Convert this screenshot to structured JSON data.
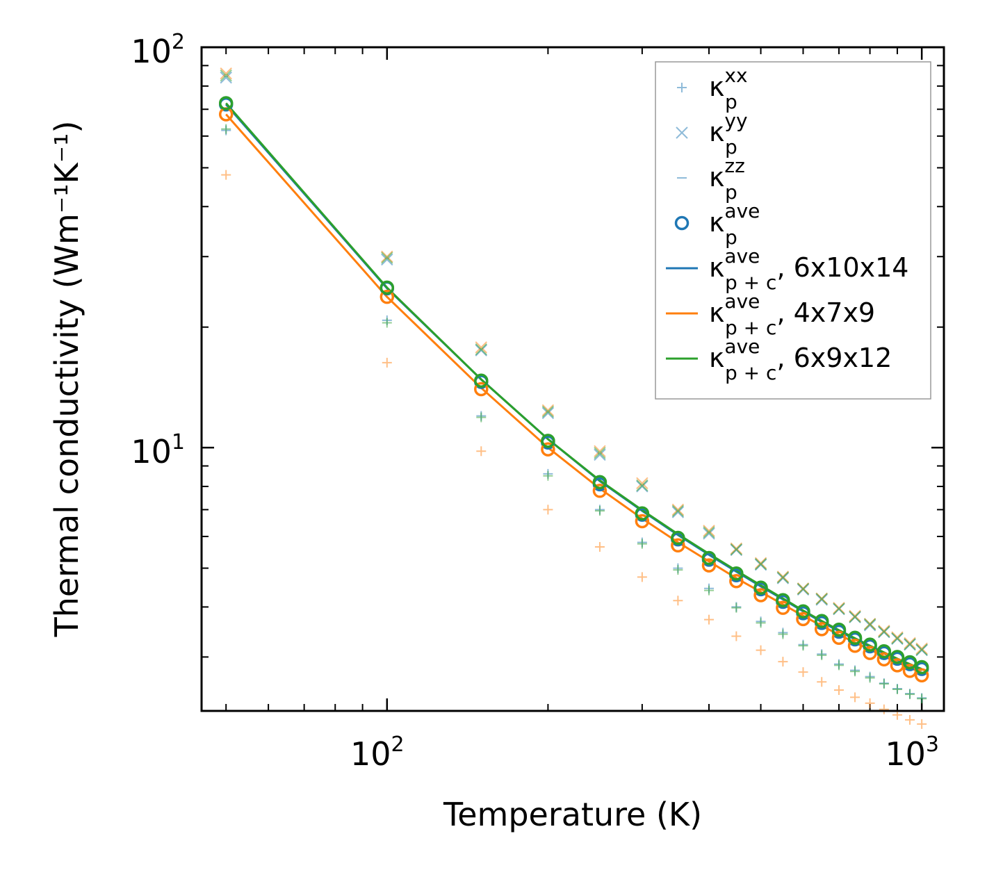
{
  "chart_data": {
    "type": "scatter",
    "xscale": "log",
    "yscale": "log",
    "xlim": [
      45,
      1100
    ],
    "ylim": [
      2.2,
      100
    ],
    "xlabel": "Temperature (K)",
    "ylabel": "Thermal conductivity (Wm⁻¹K⁻¹)",
    "x_ticks": [
      {
        "value": 100,
        "base": "10",
        "exp": "2"
      },
      {
        "value": 1000,
        "base": "10",
        "exp": "3"
      }
    ],
    "y_ticks": [
      {
        "value": 10,
        "base": "10",
        "exp": "1"
      },
      {
        "value": 100,
        "base": "10",
        "exp": "2"
      }
    ],
    "x": [
      50,
      100,
      150,
      200,
      250,
      300,
      350,
      400,
      450,
      500,
      550,
      600,
      650,
      700,
      750,
      800,
      850,
      900,
      950,
      1000
    ],
    "legend_position": "top-right",
    "legend": [
      {
        "marker": "+",
        "color": "#1f77b4",
        "label": "κ",
        "sub": "p",
        "sup": "xx",
        "suffix": ""
      },
      {
        "marker": "x",
        "color": "#1f77b4",
        "label": "κ",
        "sub": "p",
        "sup": "yy",
        "suffix": ""
      },
      {
        "marker": "_",
        "color": "#1f77b4",
        "label": "κ",
        "sub": "p",
        "sup": "zz",
        "suffix": ""
      },
      {
        "marker": "o",
        "color": "#1f77b4",
        "label": "κ",
        "sub": "p",
        "sup": "ave",
        "suffix": ""
      },
      {
        "marker": "line",
        "color": "#1f77b4",
        "label": "κ",
        "sub": "p + c",
        "sup": "ave",
        "suffix": ", 6x10x14"
      },
      {
        "marker": "line",
        "color": "#ff7f0e",
        "label": "κ",
        "sub": "p + c",
        "sup": "ave",
        "suffix": ", 4x7x9"
      },
      {
        "marker": "line",
        "color": "#2ca02c",
        "label": "κ",
        "sub": "p + c",
        "sup": "ave",
        "suffix": ", 6x9x12"
      }
    ],
    "marker_series": [
      {
        "name": "kappa_p_xx 6x10x14",
        "marker": "+",
        "color": "#1f77b4",
        "values": [
          62.0,
          20.8,
          12.0,
          8.6,
          7.0,
          5.8,
          5.0,
          4.45,
          4.0,
          3.68,
          3.45,
          3.22,
          3.05,
          2.88,
          2.78,
          2.68,
          2.58,
          2.5,
          2.43,
          2.37
        ]
      },
      {
        "name": "kappa_p_yy 6x10x14",
        "marker": "x",
        "color": "#1f77b4",
        "values": [
          84.0,
          29.5,
          17.5,
          12.2,
          9.6,
          8.0,
          6.9,
          6.1,
          5.55,
          5.1,
          4.72,
          4.42,
          4.17,
          3.95,
          3.77,
          3.6,
          3.46,
          3.33,
          3.22,
          3.12
        ]
      },
      {
        "name": "kappa_p_xx 4x7x9",
        "marker": "+",
        "color": "#ff7f0e",
        "values": [
          48.0,
          16.3,
          9.8,
          7.0,
          5.65,
          4.75,
          4.15,
          3.72,
          3.38,
          3.12,
          2.92,
          2.75,
          2.6,
          2.48,
          2.38,
          2.3,
          2.22,
          2.15,
          2.09,
          2.04
        ]
      },
      {
        "name": "kappa_p_yy 4x7x9",
        "marker": "x",
        "color": "#ff7f0e",
        "values": [
          86.0,
          30.0,
          17.8,
          12.4,
          9.8,
          8.15,
          7.0,
          6.2,
          5.6,
          5.15,
          4.76,
          4.45,
          4.2,
          3.98,
          3.8,
          3.63,
          3.49,
          3.36,
          3.25,
          3.15
        ]
      },
      {
        "name": "kappa_p_xx 6x9x12",
        "marker": "+",
        "color": "#2ca02c",
        "values": [
          62.5,
          20.5,
          11.9,
          8.5,
          6.95,
          5.75,
          4.95,
          4.4,
          3.98,
          3.65,
          3.42,
          3.2,
          3.03,
          2.86,
          2.76,
          2.66,
          2.57,
          2.49,
          2.42,
          2.36
        ]
      },
      {
        "name": "kappa_p_yy 6x9x12",
        "marker": "x",
        "color": "#2ca02c",
        "values": [
          85.0,
          29.8,
          17.6,
          12.3,
          9.7,
          8.05,
          6.95,
          6.15,
          5.57,
          5.12,
          4.74,
          4.44,
          4.19,
          3.96,
          3.78,
          3.62,
          3.47,
          3.34,
          3.23,
          3.13
        ]
      },
      {
        "name": "kappa_p_ave 6x10x14",
        "marker": "o",
        "color": "#1f77b4",
        "values": [
          72.0,
          25.0,
          14.6,
          10.3,
          8.1,
          6.8,
          5.9,
          5.25,
          4.8,
          4.43,
          4.12,
          3.86,
          3.65,
          3.47,
          3.32,
          3.19,
          3.07,
          2.97,
          2.88,
          2.8
        ]
      },
      {
        "name": "kappa_p_ave 4x7x9",
        "marker": "o",
        "color": "#ff7f0e",
        "values": [
          68.0,
          23.8,
          14.0,
          9.9,
          7.8,
          6.55,
          5.7,
          5.08,
          4.64,
          4.28,
          3.98,
          3.73,
          3.52,
          3.35,
          3.2,
          3.07,
          2.96,
          2.86,
          2.77,
          2.7
        ]
      },
      {
        "name": "kappa_p_ave 6x9x12",
        "marker": "o",
        "color": "#2ca02c",
        "values": [
          72.5,
          25.1,
          14.7,
          10.4,
          8.2,
          6.85,
          5.95,
          5.3,
          4.85,
          4.47,
          4.16,
          3.9,
          3.69,
          3.51,
          3.35,
          3.22,
          3.1,
          3.0,
          2.91,
          2.83
        ]
      }
    ],
    "line_series": [
      {
        "name": "kappa_p+c_ave 6x10x14",
        "color": "#1f77b4",
        "values": [
          72.0,
          25.0,
          14.8,
          10.5,
          8.25,
          6.95,
          6.05,
          5.4,
          4.9,
          4.5,
          4.18,
          3.9,
          3.67,
          3.48,
          3.32,
          3.18,
          3.06,
          2.95,
          2.86,
          2.78
        ]
      },
      {
        "name": "kappa_p+c_ave 4x7x9",
        "color": "#ff7f0e",
        "values": [
          68.0,
          23.8,
          14.1,
          10.0,
          7.9,
          6.65,
          5.8,
          5.2,
          4.72,
          4.36,
          4.06,
          3.8,
          3.59,
          3.41,
          3.26,
          3.13,
          3.01,
          2.91,
          2.82,
          2.74
        ]
      },
      {
        "name": "kappa_p+c_ave 6x9x12",
        "color": "#2ca02c",
        "values": [
          72.5,
          25.1,
          14.8,
          10.5,
          8.28,
          6.98,
          6.08,
          5.43,
          4.93,
          4.53,
          4.2,
          3.92,
          3.69,
          3.5,
          3.34,
          3.2,
          3.08,
          2.97,
          2.88,
          2.8
        ]
      }
    ]
  }
}
